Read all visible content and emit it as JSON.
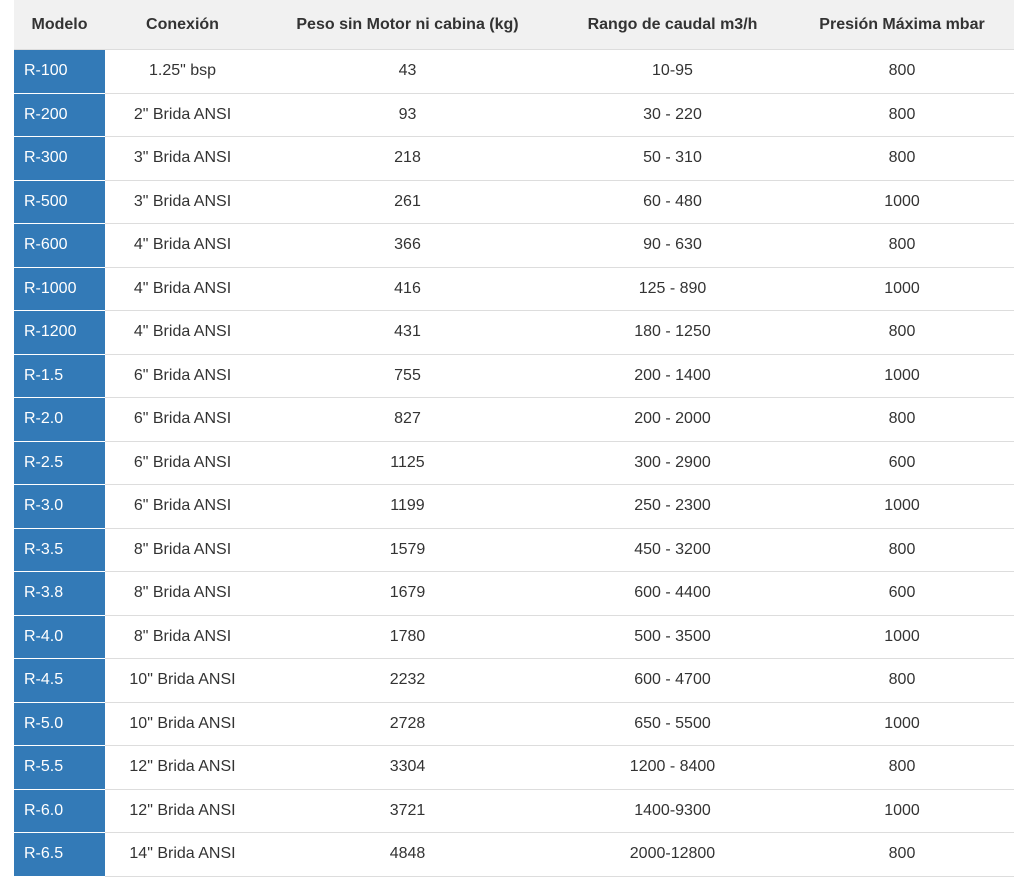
{
  "table": {
    "headers": [
      "Modelo",
      "Conexión",
      "Peso sin Motor ni cabina (kg)",
      "Rango de caudal m3/h",
      "Presión Máxima mbar"
    ],
    "rows": [
      [
        "R-100",
        "1.25\" bsp",
        "43",
        "10-95",
        "800"
      ],
      [
        "R-200",
        "2\" Brida ANSI",
        "93",
        "30 - 220",
        "800"
      ],
      [
        "R-300",
        "3\" Brida ANSI",
        "218",
        "50 - 310",
        "800"
      ],
      [
        "R-500",
        "3\" Brida ANSI",
        "261",
        "60 - 480",
        "1000"
      ],
      [
        "R-600",
        "4\" Brida ANSI",
        "366",
        "90 - 630",
        "800"
      ],
      [
        "R-1000",
        "4\" Brida ANSI",
        "416",
        "125 - 890",
        "1000"
      ],
      [
        "R-1200",
        "4\" Brida ANSI",
        "431",
        "180 - 1250",
        "800"
      ],
      [
        "R-1.5",
        "6\" Brida ANSI",
        "755",
        "200 - 1400",
        "1000"
      ],
      [
        "R-2.0",
        "6\" Brida ANSI",
        "827",
        "200 - 2000",
        "800"
      ],
      [
        "R-2.5",
        "6\" Brida ANSI",
        "1125",
        "300 - 2900",
        "600"
      ],
      [
        "R-3.0",
        "6\" Brida ANSI",
        "1199",
        "250 - 2300",
        "1000"
      ],
      [
        "R-3.5",
        "8\" Brida ANSI",
        "1579",
        "450 - 3200",
        "800"
      ],
      [
        "R-3.8",
        "8\" Brida ANSI",
        "1679",
        "600 - 4400",
        "600"
      ],
      [
        "R-4.0",
        "8\" Brida ANSI",
        "1780",
        "500 - 3500",
        "1000"
      ],
      [
        "R-4.5",
        "10\" Brida ANSI",
        "2232",
        "600 - 4700",
        "800"
      ],
      [
        "R-5.0",
        "10\" Brida ANSI",
        "2728",
        "650 - 5500",
        "1000"
      ],
      [
        "R-5.5",
        "12\" Brida ANSI",
        "3304",
        "1200 - 8400",
        "800"
      ],
      [
        "R-6.0",
        "12\" Brida ANSI",
        "3721",
        "1400-9300",
        "1000"
      ],
      [
        "R-6.5",
        "14\" Brida ANSI",
        "4848",
        "2000-12800",
        "800"
      ]
    ]
  }
}
